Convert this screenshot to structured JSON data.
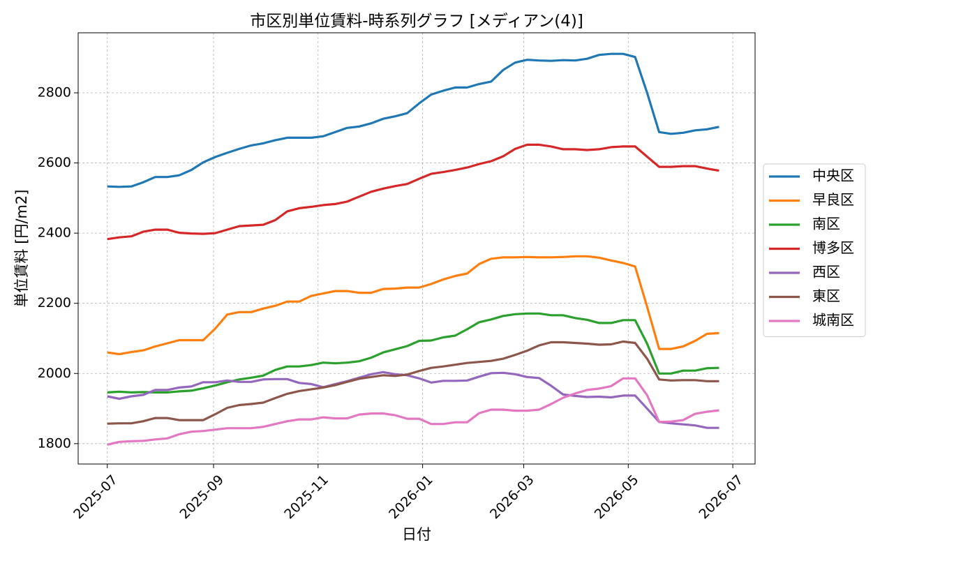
{
  "chart_data": {
    "type": "line",
    "title": "市区別単位賃料-時系列グラフ [メディアン(4)]",
    "x_label": "日付",
    "y_label": "単位賃料 [円/m2]",
    "x": [
      0,
      7,
      14,
      21,
      28,
      35,
      42,
      49,
      56,
      63,
      70,
      77,
      84,
      91,
      98,
      105,
      112,
      119,
      126,
      133,
      140,
      147,
      154,
      161,
      168,
      175,
      182,
      189,
      196,
      203,
      210,
      217,
      224,
      231,
      238,
      245,
      252,
      259,
      266,
      273,
      280,
      287,
      294,
      301,
      308,
      315,
      322,
      329,
      336,
      343,
      350,
      357
    ],
    "xlim": [
      -17,
      378
    ],
    "xticks": [
      {
        "value": 0,
        "label": "2025-07"
      },
      {
        "value": 62,
        "label": "2025-09"
      },
      {
        "value": 123,
        "label": "2025-11"
      },
      {
        "value": 184,
        "label": "2026-01"
      },
      {
        "value": 243,
        "label": "2026-03"
      },
      {
        "value": 304,
        "label": "2026-05"
      },
      {
        "value": 365,
        "label": "2026-07"
      }
    ],
    "ylim": [
      1742,
      2971
    ],
    "yticks": [
      1800,
      2000,
      2200,
      2400,
      2600,
      2800
    ],
    "grid": true,
    "legend": "right",
    "series": [
      {
        "name": "中央区",
        "color": "#1f77b4",
        "values": [
          2533,
          2532,
          2533,
          2545,
          2560,
          2560,
          2565,
          2580,
          2602,
          2617,
          2629,
          2640,
          2650,
          2656,
          2665,
          2672,
          2672,
          2672,
          2676,
          2688,
          2700,
          2704,
          2713,
          2726,
          2733,
          2742,
          2770,
          2795,
          2806,
          2815,
          2815,
          2825,
          2832,
          2865,
          2886,
          2894,
          2892,
          2891,
          2893,
          2892,
          2897,
          2908,
          2911,
          2911,
          2902,
          2800,
          2688,
          2683,
          2686,
          2693,
          2696,
          2703
        ]
      },
      {
        "name": "早良区",
        "color": "#ff7f0e",
        "values": [
          2060,
          2055,
          2061,
          2066,
          2077,
          2086,
          2095,
          2095,
          2095,
          2128,
          2168,
          2175,
          2175,
          2185,
          2193,
          2205,
          2205,
          2221,
          2228,
          2235,
          2235,
          2230,
          2230,
          2241,
          2242,
          2245,
          2245,
          2255,
          2268,
          2278,
          2285,
          2312,
          2327,
          2331,
          2331,
          2332,
          2331,
          2331,
          2332,
          2334,
          2334,
          2330,
          2322,
          2315,
          2305,
          2190,
          2070,
          2070,
          2077,
          2093,
          2113,
          2115
        ]
      },
      {
        "name": "南区",
        "color": "#2ca02c",
        "values": [
          1946,
          1948,
          1946,
          1947,
          1946,
          1946,
          1949,
          1951,
          1958,
          1966,
          1975,
          1983,
          1988,
          1994,
          2010,
          2020,
          2020,
          2024,
          2031,
          2029,
          2031,
          2035,
          2045,
          2060,
          2069,
          2078,
          2093,
          2094,
          2103,
          2108,
          2126,
          2146,
          2154,
          2164,
          2169,
          2171,
          2171,
          2166,
          2166,
          2158,
          2153,
          2144,
          2144,
          2152,
          2152,
          2085,
          2000,
          2000,
          2008,
          2008,
          2015,
          2016
        ]
      },
      {
        "name": "博多区",
        "color": "#d62728",
        "values": [
          2383,
          2388,
          2391,
          2404,
          2410,
          2410,
          2401,
          2399,
          2398,
          2400,
          2410,
          2420,
          2422,
          2424,
          2437,
          2462,
          2471,
          2475,
          2480,
          2483,
          2490,
          2504,
          2518,
          2527,
          2534,
          2540,
          2555,
          2569,
          2574,
          2580,
          2587,
          2597,
          2605,
          2619,
          2640,
          2652,
          2652,
          2647,
          2639,
          2639,
          2637,
          2639,
          2645,
          2647,
          2647,
          2618,
          2589,
          2589,
          2591,
          2591,
          2584,
          2578
        ]
      },
      {
        "name": "西区",
        "color": "#9467bd",
        "values": [
          1935,
          1928,
          1935,
          1939,
          1953,
          1953,
          1960,
          1963,
          1975,
          1975,
          1980,
          1976,
          1976,
          1983,
          1984,
          1984,
          1973,
          1970,
          1961,
          1970,
          1978,
          1988,
          1998,
          2004,
          1998,
          1995,
          1986,
          1974,
          1979,
          1979,
          1980,
          1991,
          2001,
          2002,
          1998,
          1990,
          1987,
          1965,
          1940,
          1936,
          1933,
          1934,
          1932,
          1937,
          1937,
          1900,
          1862,
          1858,
          1855,
          1852,
          1845,
          1845
        ]
      },
      {
        "name": "東区",
        "color": "#8c564b",
        "values": [
          1857,
          1858,
          1858,
          1864,
          1873,
          1873,
          1867,
          1867,
          1867,
          1884,
          1902,
          1910,
          1913,
          1917,
          1930,
          1942,
          1950,
          1955,
          1960,
          1967,
          1976,
          1985,
          1990,
          1995,
          1993,
          1997,
          2007,
          2016,
          2020,
          2025,
          2030,
          2033,
          2036,
          2042,
          2053,
          2065,
          2080,
          2089,
          2089,
          2087,
          2085,
          2082,
          2083,
          2091,
          2087,
          2042,
          1983,
          1980,
          1981,
          1981,
          1978,
          1978
        ]
      },
      {
        "name": "城南区",
        "color": "#e377c2",
        "values": [
          1797,
          1805,
          1807,
          1808,
          1812,
          1815,
          1827,
          1834,
          1836,
          1840,
          1844,
          1844,
          1844,
          1848,
          1856,
          1864,
          1869,
          1869,
          1875,
          1872,
          1872,
          1883,
          1886,
          1886,
          1881,
          1871,
          1871,
          1856,
          1856,
          1861,
          1861,
          1887,
          1897,
          1897,
          1894,
          1894,
          1897,
          1913,
          1931,
          1943,
          1953,
          1957,
          1964,
          1986,
          1986,
          1938,
          1862,
          1863,
          1867,
          1885,
          1891,
          1895
        ]
      }
    ]
  }
}
